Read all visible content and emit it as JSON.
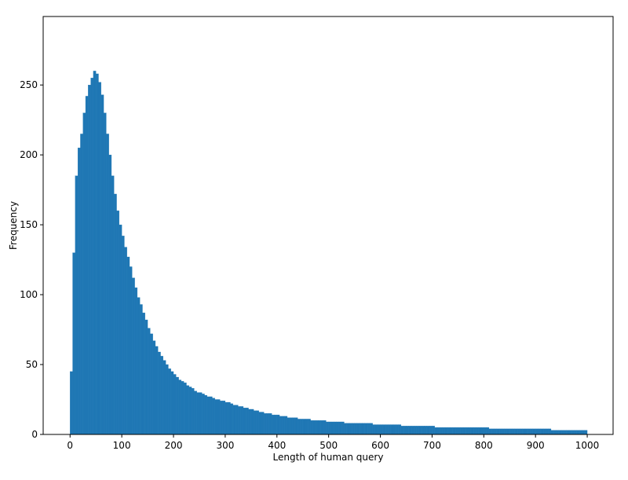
{
  "chart_data": {
    "type": "histogram",
    "xlabel": "Length of human query",
    "ylabel": "Frequency",
    "color": "#1f77b4",
    "xlim": [
      -52,
      1050
    ],
    "ylim": [
      0,
      299
    ],
    "xticks": [
      0,
      100,
      200,
      300,
      400,
      500,
      600,
      700,
      800,
      900,
      1000
    ],
    "yticks": [
      0,
      50,
      100,
      150,
      200,
      250
    ],
    "bins": [
      0,
      5,
      10,
      15,
      20,
      25,
      30,
      35,
      40,
      45,
      50,
      55,
      60,
      65,
      70,
      75,
      80,
      85,
      90,
      95,
      100,
      105,
      110,
      115,
      120,
      125,
      130,
      135,
      140,
      145,
      150,
      155,
      160,
      165,
      170,
      175,
      180,
      185,
      190,
      195,
      200,
      205,
      210,
      215,
      220,
      225,
      230,
      235,
      240,
      245,
      250,
      255,
      260,
      265,
      270,
      275,
      280,
      285,
      290,
      295,
      300,
      305,
      310,
      315,
      320,
      325,
      330,
      335,
      340,
      345,
      350,
      355,
      360,
      365,
      370,
      375,
      380,
      385,
      390,
      395,
      400,
      405,
      410,
      415,
      420,
      425,
      430,
      435,
      440,
      445,
      450,
      455,
      460,
      465,
      470,
      475,
      480,
      485,
      490,
      495,
      500,
      505,
      510,
      515,
      520,
      525,
      530,
      535,
      540,
      545,
      550,
      555,
      560,
      565,
      570,
      575,
      580,
      585,
      590,
      595,
      600,
      605,
      610,
      615,
      620,
      625,
      630,
      635,
      640,
      645,
      650,
      655,
      660,
      665,
      670,
      675,
      680,
      685,
      690,
      695,
      700,
      705,
      710,
      715,
      720,
      725,
      730,
      735,
      740,
      745,
      750,
      755,
      760,
      765,
      770,
      775,
      780,
      785,
      790,
      795,
      800,
      805,
      810,
      815,
      820,
      825,
      830,
      835,
      840,
      845,
      850,
      855,
      860,
      865,
      870,
      875,
      880,
      885,
      890,
      895,
      900,
      905,
      910,
      915,
      920,
      925,
      930,
      935,
      940,
      945,
      950,
      955,
      960,
      965,
      970,
      975,
      980,
      985,
      990,
      995,
      1000
    ],
    "counts": [
      45,
      130,
      185,
      205,
      215,
      230,
      242,
      250,
      255,
      260,
      258,
      252,
      243,
      230,
      215,
      200,
      185,
      172,
      160,
      150,
      142,
      134,
      127,
      120,
      112,
      105,
      98,
      93,
      87,
      82,
      76,
      72,
      67,
      63,
      59,
      56,
      53,
      50,
      47,
      45,
      43,
      41,
      39,
      38,
      37,
      35,
      34,
      33,
      31,
      30,
      30,
      29,
      28,
      27,
      27,
      26,
      25,
      25,
      24,
      24,
      23,
      23,
      22,
      21,
      21,
      20,
      20,
      19,
      19,
      18,
      18,
      17,
      17,
      16,
      16,
      15,
      15,
      15,
      14,
      14,
      14,
      13,
      13,
      13,
      12,
      12,
      12,
      12,
      11,
      11,
      11,
      11,
      11,
      10,
      10,
      10,
      10,
      10,
      10,
      9,
      9,
      9,
      9,
      9,
      9,
      9,
      8,
      8,
      8,
      8,
      8,
      8,
      8,
      8,
      8,
      8,
      8,
      7,
      7,
      7,
      7,
      7,
      7,
      7,
      7,
      7,
      7,
      7,
      6,
      6,
      6,
      6,
      6,
      6,
      6,
      6,
      6,
      6,
      6,
      6,
      6,
      5,
      5,
      5,
      5,
      5,
      5,
      5,
      5,
      5,
      5,
      5,
      5,
      5,
      5,
      5,
      5,
      5,
      5,
      5,
      5,
      5,
      4,
      4,
      4,
      4,
      4,
      4,
      4,
      4,
      4,
      4,
      4,
      4,
      4,
      4,
      4,
      4,
      4,
      4,
      4,
      4,
      4,
      4,
      4,
      4,
      3,
      3,
      3,
      3,
      3,
      3,
      3,
      3,
      3,
      3,
      3,
      3,
      3,
      3
    ]
  }
}
